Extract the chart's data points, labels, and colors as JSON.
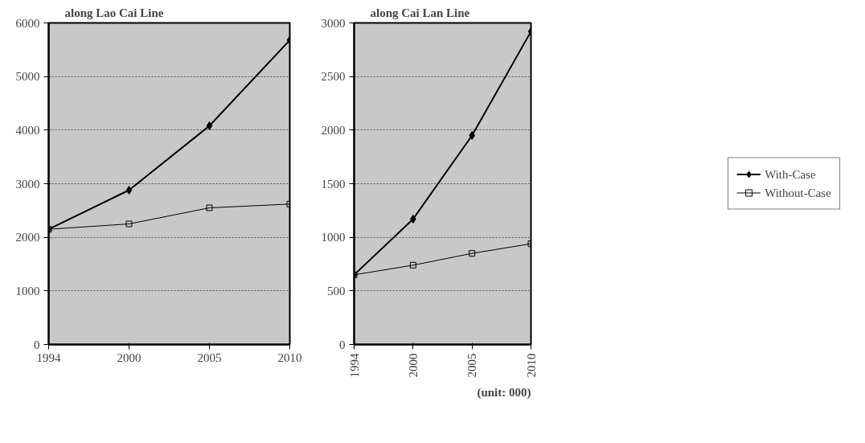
{
  "chart_data": [
    {
      "type": "line",
      "title": "along Lao Cai Line",
      "categories": [
        "1994",
        "2000",
        "2005",
        "2010"
      ],
      "ylim": [
        0,
        6000
      ],
      "yticks": [
        0,
        1000,
        2000,
        3000,
        4000,
        5000,
        6000
      ],
      "grid": "y",
      "legend": false,
      "series": [
        {
          "color": "#000000",
          "marker": "diamond",
          "values": [
            2150,
            2880,
            4080,
            5680
          ]
        },
        {
          "color": "#000000",
          "marker": "square",
          "values": [
            2150,
            2250,
            2550,
            2620
          ]
        }
      ]
    },
    {
      "type": "line",
      "title": "along Cai Lan Line",
      "categories": [
        "1994",
        "2000",
        "2005",
        "2010"
      ],
      "ylim": [
        0,
        3000
      ],
      "yticks": [
        0,
        500,
        1000,
        1500,
        2000,
        2500,
        3000
      ],
      "grid": "y",
      "legend": "right",
      "annotations": [
        "(unit: 000)"
      ],
      "series": [
        {
          "name": "With-Case",
          "color": "#000000",
          "marker": "diamond",
          "values": [
            650,
            1170,
            1950,
            2920
          ]
        },
        {
          "name": "Without-Case",
          "color": "#000000",
          "marker": "square",
          "values": [
            650,
            740,
            850,
            940
          ]
        }
      ]
    }
  ]
}
